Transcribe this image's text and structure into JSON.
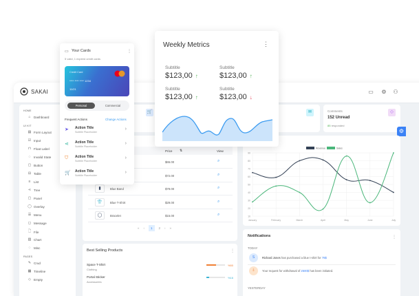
{
  "app": {
    "name": "SAKAI"
  },
  "topbar": {
    "icons": [
      "calendar-icon",
      "gear-icon",
      "user-icon"
    ]
  },
  "sidebar": {
    "sections": [
      {
        "title": "HOME",
        "items": [
          {
            "label": "Dashboard",
            "icon": "⌂"
          }
        ]
      },
      {
        "title": "UI KIT",
        "items": [
          {
            "label": "Form Layout",
            "icon": "▤"
          },
          {
            "label": "Input",
            "icon": "☑"
          },
          {
            "label": "Float Label",
            "icon": "⊓"
          },
          {
            "label": "Invalid State",
            "icon": "◌"
          },
          {
            "label": "Button",
            "icon": "▢"
          },
          {
            "label": "Table",
            "icon": "⊟"
          },
          {
            "label": "List",
            "icon": "≡"
          },
          {
            "label": "Tree",
            "icon": "⋖"
          },
          {
            "label": "Panel",
            "icon": "▢"
          },
          {
            "label": "Overlay",
            "icon": "◯"
          },
          {
            "label": "Menu",
            "icon": "☰"
          },
          {
            "label": "Message",
            "icon": "◻"
          },
          {
            "label": "File",
            "icon": "🗋"
          },
          {
            "label": "Chart",
            "icon": "▥"
          },
          {
            "label": "Misc",
            "icon": "◌"
          }
        ]
      },
      {
        "title": "PAGES",
        "items": [
          {
            "label": "Crud",
            "icon": "✎"
          },
          {
            "label": "Timeline",
            "icon": "▦"
          },
          {
            "label": "Empty",
            "icon": "◇"
          }
        ]
      }
    ]
  },
  "stats": {
    "comments": {
      "title": "Comments",
      "value": "152 Unread",
      "highlight": "85",
      "suffix": "responded"
    }
  },
  "table": {
    "headers": {
      "price": "Price",
      "view": "View"
    },
    "rows": [
      {
        "name": "",
        "price": "$65.00"
      },
      {
        "name": "",
        "price": "$72.00"
      },
      {
        "name": "Blue Band",
        "price": "$79.00"
      },
      {
        "name": "Blue T-Shirt",
        "price": "$29.00"
      },
      {
        "name": "Bracelet",
        "price": "$15.00"
      }
    ],
    "pages": [
      "1",
      "2"
    ],
    "current_page": "1"
  },
  "chart_data": {
    "type": "line",
    "categories": [
      "January",
      "February",
      "March",
      "April",
      "May",
      "June",
      "July"
    ],
    "series": [
      {
        "name": "Revenue",
        "values": [
          65,
          59,
          80,
          81,
          56,
          55,
          40
        ],
        "color": "#334155"
      },
      {
        "name": "Sales",
        "values": [
          28,
          48,
          40,
          19,
          86,
          27,
          90
        ],
        "color": "#4ab67a"
      }
    ],
    "ylim": [
      10,
      90
    ],
    "yticks": [
      10,
      20,
      30,
      40,
      50,
      60,
      70,
      80,
      90
    ],
    "legend": "top",
    "grid": true
  },
  "best_selling": {
    "title": "Best Selling Products",
    "items": [
      {
        "name": "Space T-Shirt",
        "category": "Clothing",
        "percent": 50,
        "label": "%50",
        "color": "#f07f34"
      },
      {
        "name": "Portal Sticker",
        "category": "Accessories",
        "percent": 16,
        "label": "%16",
        "color": "#3cb4d4"
      }
    ]
  },
  "notifications": {
    "title": "Notifications",
    "today": "TODAY",
    "yesterday": "YESTERDAY",
    "items": [
      {
        "avatar": "S",
        "name": "Richard Jones",
        "text": " has purchased a blue t-shirt for ",
        "amount": "79$",
        "end": ""
      },
      {
        "avatar": "⇩",
        "name": "",
        "text": "Your request for withdrawal of ",
        "amount": "2500$",
        "end": " has been initiated."
      }
    ]
  },
  "cards_panel": {
    "title": "Your Cards",
    "subtitle": "5 valid, 1 expired credit cards",
    "card": {
      "label": "Credit Card",
      "number": "**** **** **** 1234",
      "expiry": "11/21",
      "brand": "mastercard"
    },
    "toggle": {
      "options": [
        "Personal",
        "Commercial"
      ],
      "selected": "Personal"
    },
    "actions_title": "Frequent Actions",
    "change_label": "Change Actions",
    "actions": [
      {
        "title": "Action Title",
        "subtitle": "Subtitle Placeholder",
        "icon": "send-icon",
        "color": "#6b5ce7",
        "glyph": "➤"
      },
      {
        "title": "Action Title",
        "subtitle": "Subtitle Placeholder",
        "icon": "share-icon",
        "color": "#2bb39a",
        "glyph": "⋖"
      },
      {
        "title": "Action Title",
        "subtitle": "Subtitle Placeholder",
        "icon": "shield-icon",
        "color": "#f08a34",
        "glyph": "⛉"
      },
      {
        "title": "Action Title",
        "subtitle": "Subtitle Placeholder",
        "icon": "cart-icon",
        "color": "#a259d9",
        "glyph": "🛒"
      }
    ]
  },
  "weekly": {
    "title": "Weekly Metrics",
    "metrics": [
      {
        "subtitle": "Subtitle",
        "value": "$123,00",
        "trend": "up"
      },
      {
        "subtitle": "Subtitle",
        "value": "$123,00",
        "trend": "up"
      },
      {
        "subtitle": "Subtitle",
        "value": "$123,00",
        "trend": "up"
      },
      {
        "subtitle": "Subtitle",
        "value": "$123,00",
        "trend": "down"
      }
    ],
    "arrows": {
      "up": "↑",
      "down": "↓"
    },
    "colors": {
      "up": "#4caf50",
      "down": "#e53950",
      "area": "#cce4fb",
      "line": "#3b9bf0"
    }
  }
}
